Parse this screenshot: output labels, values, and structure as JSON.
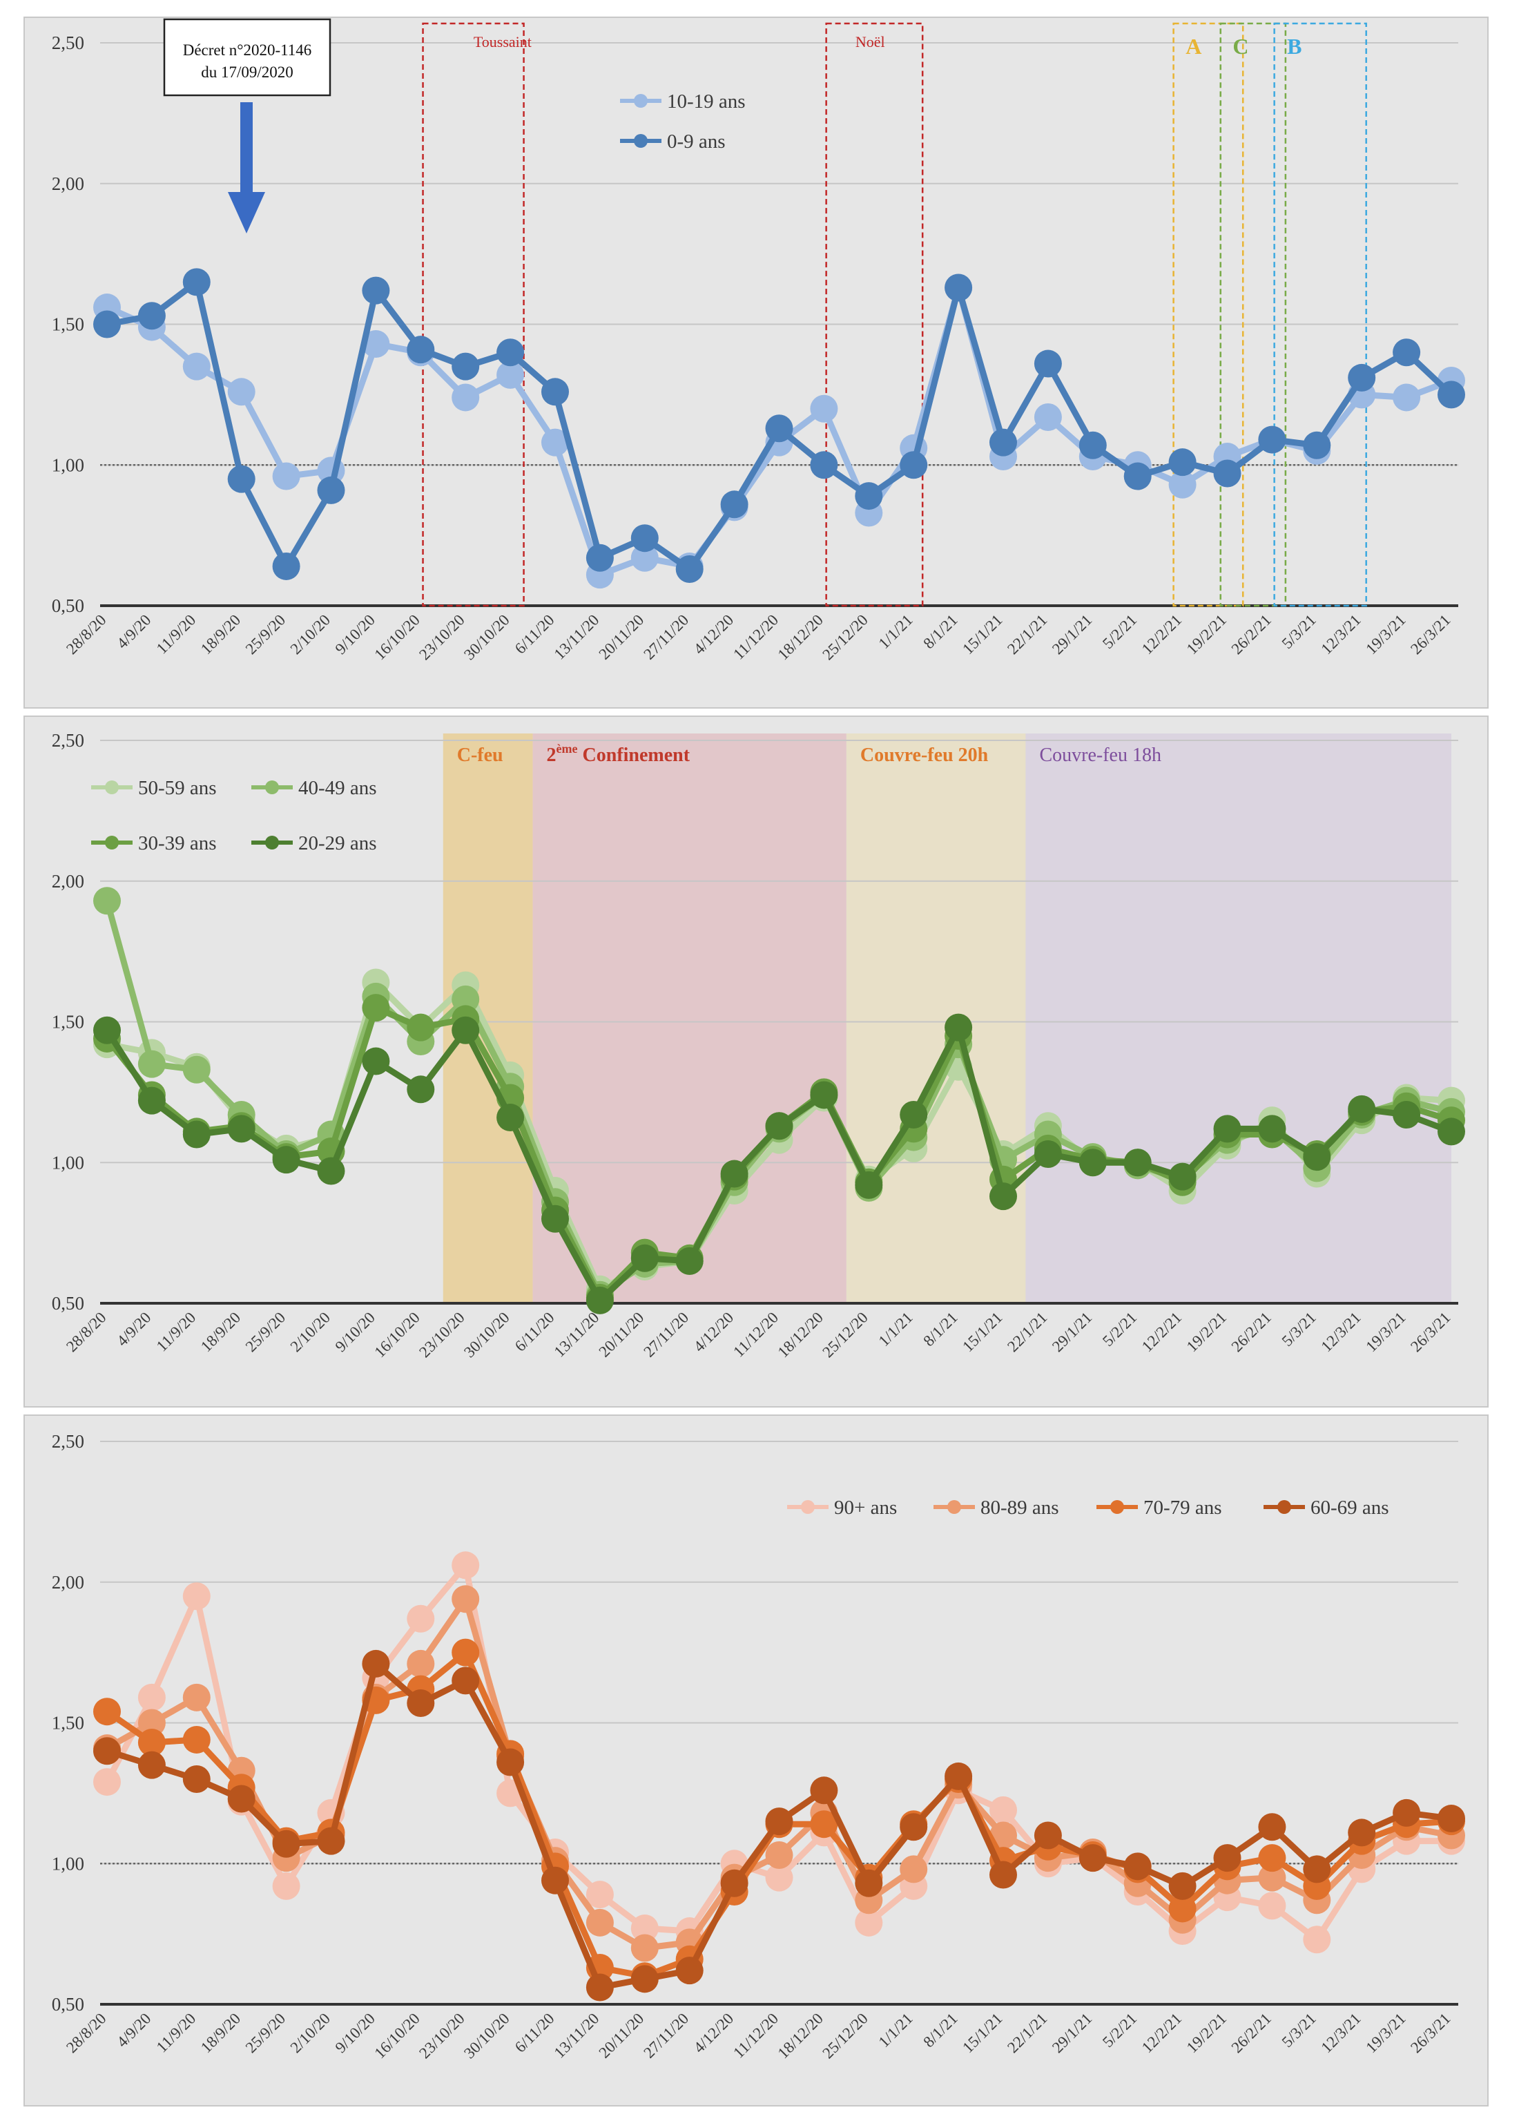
{
  "chart_data": [
    {
      "type": "line",
      "categories": [
        "28/8/20",
        "4/9/20",
        "11/9/20",
        "18/9/20",
        "25/9/20",
        "2/10/20",
        "9/10/20",
        "16/10/20",
        "23/10/20",
        "30/10/20",
        "6/11/20",
        "13/11/20",
        "20/11/20",
        "27/11/20",
        "4/12/20",
        "11/12/20",
        "18/12/20",
        "25/12/20",
        "1/1/21",
        "8/1/21",
        "15/1/21",
        "22/1/21",
        "29/1/21",
        "5/2/21",
        "12/2/21",
        "19/2/21",
        "26/2/21",
        "5/3/21",
        "12/3/21",
        "19/3/21",
        "26/3/21"
      ],
      "ylim": [
        0.5,
        2.5
      ],
      "yticks": [
        "0,50",
        "1,00",
        "1,50",
        "2,00",
        "2,50"
      ],
      "reference_line": 1.0,
      "legend": "top-center",
      "series": [
        {
          "name": "10-19 ans",
          "color": "#9bb9e3",
          "values": [
            1.56,
            1.49,
            1.35,
            1.26,
            0.96,
            0.98,
            1.43,
            1.4,
            1.24,
            1.32,
            1.08,
            0.61,
            0.67,
            0.64,
            0.85,
            1.08,
            1.2,
            0.83,
            1.06,
            1.63,
            1.03,
            1.17,
            1.03,
            1.0,
            0.93,
            1.03,
            1.09,
            1.05,
            1.25,
            1.24,
            1.3
          ],
          "labels": [
            "1,56",
            "1,49",
            "1,35",
            "1,26",
            "0,96",
            "0,98",
            "1,43",
            "1,40",
            "1,24",
            "1,32",
            "1,08",
            "0,61",
            "0,67",
            "0,64",
            "0,85",
            "1,08",
            "1,20",
            "0,83",
            "1,06",
            "1,63",
            "1,03",
            "1,17",
            "1,03",
            "1,00",
            "0,93",
            "1,03",
            "1,09",
            "1,05",
            "1,25",
            "1,24",
            "1,30"
          ]
        },
        {
          "name": "0-9 ans",
          "color": "#4a7eb8",
          "values": [
            1.5,
            1.53,
            1.65,
            0.95,
            0.64,
            0.91,
            1.62,
            1.41,
            1.35,
            1.4,
            1.26,
            0.67,
            0.74,
            0.63,
            0.86,
            1.13,
            1.0,
            0.89,
            1.0,
            1.63,
            1.08,
            1.36,
            1.07,
            0.96,
            1.01,
            0.97,
            1.09,
            1.07,
            1.31,
            1.4,
            1.25
          ],
          "labels": [
            "1,50",
            "1,53",
            "1,65",
            "0,95",
            "0,64",
            "0,91",
            "1,62",
            "1,41",
            "1,35",
            "1,40",
            "1,26",
            "0,67",
            "0,74",
            "0,63",
            "0,86",
            "1,13",
            "1,00",
            "0,89",
            "1,00",
            "1,63",
            "1,08",
            "1,36",
            "1,07",
            "0,96",
            "1,01",
            "0,97",
            "1,09",
            "1,07",
            "1,31",
            "1,40",
            "1,25"
          ]
        }
      ],
      "annotations": {
        "decree": [
          "Décret n°2020-1146",
          "du 17/09/2020"
        ],
        "boxes": [
          {
            "label": "Toussaint",
            "color": "#c22727"
          },
          {
            "label": "Noël",
            "color": "#c22727"
          },
          {
            "label": "A",
            "color": "#e8b433"
          },
          {
            "label": "C",
            "color": "#79ab48"
          },
          {
            "label": "B",
            "color": "#3ca9e0"
          }
        ]
      }
    },
    {
      "type": "line",
      "categories": [
        "28/8/20",
        "4/9/20",
        "11/9/20",
        "18/9/20",
        "25/9/20",
        "2/10/20",
        "9/10/20",
        "16/10/20",
        "23/10/20",
        "30/10/20",
        "6/11/20",
        "13/11/20",
        "20/11/20",
        "27/11/20",
        "4/12/20",
        "11/12/20",
        "18/12/20",
        "25/12/20",
        "1/1/21",
        "8/1/21",
        "15/1/21",
        "22/1/21",
        "29/1/21",
        "5/2/21",
        "12/2/21",
        "19/2/21",
        "26/2/21",
        "5/3/21",
        "12/3/21",
        "19/3/21",
        "26/3/21"
      ],
      "ylim": [
        0.5,
        2.5
      ],
      "yticks": [
        "0,50",
        "1,00",
        "1,50",
        "2,00",
        "2,50"
      ],
      "legend": "top-left",
      "series": [
        {
          "name": "50-59 ans",
          "color": "#b9d5a3",
          "values": [
            1.42,
            1.39,
            1.34,
            1.15,
            1.05,
            1.09,
            1.64,
            1.48,
            1.63,
            1.31,
            0.9,
            0.55,
            0.63,
            0.65,
            0.9,
            1.08,
            1.23,
            0.94,
            1.05,
            1.34,
            1.03,
            1.13,
            1.0,
            1.0,
            0.9,
            1.06,
            1.15,
            0.96,
            1.15,
            1.23,
            1.22
          ],
          "labels": [
            "1,42",
            "1,39",
            "1,34",
            "1,15",
            "1,05",
            "1,09",
            "1,64",
            "1,48",
            "1,63",
            "1,31",
            "0,90",
            "0,55",
            "0,63",
            "0,65",
            "0,90",
            "1,08",
            "1,23",
            "0,94",
            "1,05",
            "1,34",
            "1,03",
            "1,13",
            "1,00",
            "1,00",
            "0,90",
            "1,06",
            "1,15",
            "0,96",
            "1,15",
            "1,23",
            "1,22"
          ]
        },
        {
          "name": "40-49 ans",
          "color": "#8dbb6b",
          "values": [
            1.93,
            1.35,
            1.33,
            1.17,
            1.03,
            1.1,
            1.59,
            1.43,
            1.58,
            1.27,
            0.86,
            0.53,
            0.64,
            0.65,
            0.93,
            1.12,
            1.24,
            0.91,
            1.09,
            1.42,
            1.01,
            1.1,
            1.02,
            0.99,
            0.94,
            1.08,
            1.12,
            0.98,
            1.17,
            1.22,
            1.18
          ],
          "labels": [
            "1,93",
            "1,35",
            "1,33",
            "1,17",
            "1,03",
            "1,10",
            "1,59",
            "1,43",
            "1,58",
            "1,27",
            "0,86",
            "0,53",
            "0,64",
            "0,65",
            "0,93",
            "1,12",
            "1,24",
            "0,91",
            "1,09",
            "1,42",
            "1,01",
            "1,10",
            "1,02",
            "0,99",
            "0,94",
            "1,08",
            "1,12",
            "0,98",
            "1,17",
            "1,22",
            "1,18"
          ]
        },
        {
          "name": "30-39 ans",
          "color": "#6c9f43",
          "values": [
            1.44,
            1.24,
            1.11,
            1.13,
            1.02,
            1.04,
            1.55,
            1.48,
            1.51,
            1.23,
            0.83,
            0.52,
            0.68,
            0.66,
            0.95,
            1.13,
            1.25,
            0.93,
            1.12,
            1.45,
            0.94,
            1.05,
            1.01,
            1.0,
            0.93,
            1.1,
            1.1,
            1.03,
            1.18,
            1.2,
            1.15
          ],
          "labels": [
            "1,44",
            "1,24",
            "1,11",
            "1,13",
            "1,02",
            "1,04",
            "1,55",
            "1,48",
            "1,51",
            "1,23",
            "0,83",
            "0,52",
            "0,68",
            "0,66",
            "0,95",
            "1,13",
            "1,25",
            "0,93",
            "1,12",
            "1,45",
            "0,94",
            "1,05",
            "1,01",
            "1,00",
            "0,93",
            "1,10",
            "1,10",
            "1,03",
            "1,18",
            "1,20",
            "1,15"
          ]
        },
        {
          "name": "20-29 ans",
          "color": "#4d7f30",
          "values": [
            1.47,
            1.22,
            1.1,
            1.12,
            1.01,
            0.97,
            1.36,
            1.26,
            1.47,
            1.16,
            0.8,
            0.51,
            0.66,
            0.65,
            0.96,
            1.13,
            1.24,
            0.92,
            1.17,
            1.48,
            0.88,
            1.03,
            1.0,
            1.0,
            0.95,
            1.12,
            1.12,
            1.02,
            1.19,
            1.17,
            1.11
          ],
          "labels": [
            "1,47",
            "1,22",
            "1,10",
            "1,12",
            "1,01",
            "0,97",
            "1,36",
            "1,26",
            "1,47",
            "1,16",
            "0,80",
            "0,51",
            "0,66",
            "0,65",
            "0,96",
            "1,13",
            "1,24",
            "0,92",
            "1,17",
            "1,48",
            "0,88",
            "1,03",
            "1,00",
            "1,00",
            "0,95",
            "1,12",
            "1,12",
            "1,02",
            "1,19",
            "1,17",
            "1,11"
          ]
        }
      ],
      "annotations": {
        "periods": [
          {
            "label": "C-feu",
            "color": "#e8cf9a",
            "text_color": "#e07a2b"
          },
          {
            "label_main": "2",
            "label_sup": "ème",
            "label_rest": " Confinement",
            "color": "#e1c3c6",
            "text_color": "#c0392b"
          },
          {
            "label": "Couvre-feu 20h",
            "color": "#e8dfc4",
            "text_color": "#e07a2b"
          },
          {
            "label": "Couvre-feu 18h",
            "color": "#d9d1df",
            "text_color": "#7d4e9c"
          }
        ]
      }
    },
    {
      "type": "line",
      "categories": [
        "28/8/20",
        "4/9/20",
        "11/9/20",
        "18/9/20",
        "25/9/20",
        "2/10/20",
        "9/10/20",
        "16/10/20",
        "23/10/20",
        "30/10/20",
        "6/11/20",
        "13/11/20",
        "20/11/20",
        "27/11/20",
        "4/12/20",
        "11/12/20",
        "18/12/20",
        "25/12/20",
        "1/1/21",
        "8/1/21",
        "15/1/21",
        "22/1/21",
        "29/1/21",
        "5/2/21",
        "12/2/21",
        "19/2/21",
        "26/2/21",
        "5/3/21",
        "12/3/21",
        "19/3/21",
        "26/3/21"
      ],
      "ylim": [
        0.5,
        2.5
      ],
      "yticks": [
        "0,50",
        "1,00",
        "1,50",
        "2,00",
        "2,50"
      ],
      "reference_line": 1.0,
      "legend": "top-right",
      "series": [
        {
          "name": "90+ ans",
          "color": "#f5c1b0",
          "values": [
            1.29,
            1.59,
            1.95,
            1.22,
            0.92,
            1.18,
            1.66,
            1.87,
            2.06,
            1.25,
            1.04,
            0.89,
            0.77,
            0.76,
            1.0,
            0.95,
            1.11,
            0.79,
            0.92,
            1.26,
            1.19,
            1.0,
            1.02,
            0.9,
            0.76,
            0.88,
            0.85,
            0.73,
            0.98,
            1.08,
            1.08
          ],
          "labels": [
            "1,29",
            "1,59",
            "1,95",
            "1,22",
            "0,92",
            "1,18",
            "1,66",
            "1,87",
            "2,06",
            "1,25",
            "1,04",
            "0,89",
            "0,77",
            "0,76",
            "1,00",
            "0,95",
            "1,11",
            "0,79",
            "0,92",
            "1,26",
            "1,19",
            "1,00",
            "1,02",
            "0,90",
            "0,76",
            "0,88",
            "0,85",
            "0,73",
            "0,98",
            "1,08",
            "1,08"
          ]
        },
        {
          "name": "80-89 ans",
          "color": "#ec9a6e",
          "values": [
            1.41,
            1.5,
            1.59,
            1.33,
            1.02,
            1.1,
            1.59,
            1.71,
            1.94,
            1.38,
            1.01,
            0.79,
            0.7,
            0.72,
            0.95,
            1.03,
            1.18,
            0.87,
            0.98,
            1.28,
            1.1,
            1.02,
            1.04,
            0.93,
            0.8,
            0.94,
            0.95,
            0.87,
            1.03,
            1.13,
            1.1
          ],
          "labels": [
            "1,41",
            "1,50",
            "1,59",
            "1,33",
            "1,02",
            "1,10",
            "1,59",
            "1,71",
            "1,94",
            "1,38",
            "1,01",
            "0,79",
            "0,70",
            "0,72",
            "0,95",
            "1,03",
            "1,18",
            "0,87",
            "0,98",
            "1,28",
            "1,10",
            "1,02",
            "1,04",
            "0,93",
            "0,80",
            "0,94",
            "0,95",
            "0,87",
            "1,03",
            "1,13",
            "1,10"
          ]
        },
        {
          "name": "70-79 ans",
          "color": "#e0712c",
          "values": [
            1.54,
            1.43,
            1.44,
            1.27,
            1.08,
            1.11,
            1.58,
            1.62,
            1.75,
            1.39,
            0.99,
            0.63,
            0.6,
            0.66,
            0.9,
            1.14,
            1.14,
            0.95,
            1.14,
            1.3,
            1.01,
            1.06,
            1.03,
            0.98,
            0.84,
            0.99,
            1.02,
            0.92,
            1.08,
            1.14,
            1.15
          ],
          "labels": [
            "1,54",
            "1,43",
            "1,44",
            "1,27",
            "1,08",
            "1,11",
            "1,58",
            "1,62",
            "1,75",
            "1,39",
            "0,99",
            "0,63",
            "0,60",
            "0,66",
            "0,90",
            "1,14",
            "1,14",
            "0,95",
            "1,14",
            "1,30",
            "1,01",
            "1,06",
            "1,03",
            "0,98",
            "0,84",
            "0,99",
            "1,02",
            "0,92",
            "1,08",
            "1,14",
            "1,15"
          ]
        },
        {
          "name": "60-69 ans",
          "color": "#b8551d",
          "values": [
            1.4,
            1.35,
            1.3,
            1.23,
            1.07,
            1.08,
            1.71,
            1.57,
            1.65,
            1.36,
            0.94,
            0.56,
            0.59,
            0.62,
            0.93,
            1.15,
            1.26,
            0.93,
            1.13,
            1.31,
            0.96,
            1.1,
            1.02,
            0.99,
            0.92,
            1.02,
            1.13,
            0.98,
            1.11,
            1.18,
            1.16
          ],
          "labels": [
            "1,40",
            "1,35",
            "1,30",
            "1,23",
            "1,07",
            "1,08",
            "1,71",
            "1,57",
            "1,65",
            "1,36",
            "0,94",
            "0,56",
            "0,59",
            "0,62",
            "0,93",
            "1,15",
            "1,26",
            "0,93",
            "1,13",
            "1,31",
            "0,96",
            "1,10",
            "1,02",
            "0,99",
            "0,92",
            "1,02",
            "1,13",
            "0,98",
            "1,11",
            "1,18",
            "1,16"
          ]
        }
      ]
    }
  ]
}
